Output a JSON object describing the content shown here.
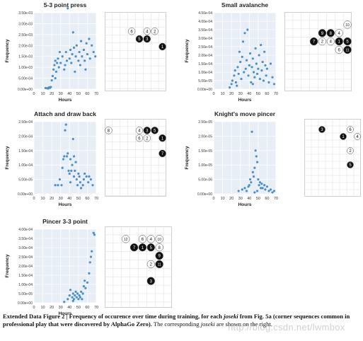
{
  "chart_data": [
    {
      "type": "scatter",
      "title": "5-3 point press",
      "xlabel": "Hours",
      "ylabel": "Frequency",
      "xlim": [
        0,
        70
      ],
      "ylim": [
        0,
        0.0035
      ],
      "xticks": [
        "0",
        "10",
        "20",
        "30",
        "40",
        "50",
        "60",
        "70"
      ],
      "yticks": [
        "0.00e+00",
        "5.00e-04",
        "1.00e-03",
        "1.50e-03",
        "2.00e-03",
        "2.50e-03",
        "3.00e-03",
        "3.50e-03"
      ],
      "color": "#4a90c8",
      "points": [
        [
          13,
          5e-05
        ],
        [
          15,
          4e-05
        ],
        [
          16,
          3e-05
        ],
        [
          17,
          8e-05
        ],
        [
          18,
          6e-05
        ],
        [
          19,
          0.0001
        ],
        [
          20,
          0.0004
        ],
        [
          21,
          0.0006
        ],
        [
          22,
          0.0009
        ],
        [
          23,
          0.0011
        ],
        [
          24,
          0.0013
        ],
        [
          25,
          0.0008
        ],
        [
          26,
          0.0012
        ],
        [
          27,
          0.0014
        ],
        [
          28,
          0.001
        ],
        [
          30,
          0.0012
        ],
        [
          32,
          0.0015
        ],
        [
          34,
          0.0009
        ],
        [
          35,
          0.0011
        ],
        [
          36,
          0.0017
        ],
        [
          37,
          0.0013
        ],
        [
          38,
          0.0037
        ],
        [
          40,
          0.0014
        ],
        [
          41,
          0.0018
        ],
        [
          42,
          0.0012
        ],
        [
          43,
          0.0016
        ],
        [
          45,
          0.0019
        ],
        [
          46,
          0.0008
        ],
        [
          47,
          0.0015
        ],
        [
          48,
          0.002
        ],
        [
          50,
          0.0013
        ],
        [
          51,
          0.0017
        ],
        [
          52,
          0.0011
        ],
        [
          54,
          0.0015
        ],
        [
          56,
          0.0018
        ],
        [
          57,
          0.0013
        ],
        [
          59,
          0.0021
        ],
        [
          60,
          0.0016
        ],
        [
          62,
          0.0023
        ],
        [
          63,
          0.0014
        ],
        [
          65,
          0.002
        ],
        [
          67,
          0.0017
        ],
        [
          69,
          0.0015
        ],
        [
          44,
          0.0026
        ],
        [
          53,
          0.0022
        ],
        [
          58,
          0.0009
        ],
        [
          24,
          0.0005
        ],
        [
          29,
          0.0017
        ]
      ]
    },
    {
      "type": "scatter",
      "title": "Small avalanche",
      "xlabel": "Hours",
      "ylabel": "Frequency",
      "xlim": [
        0,
        70
      ],
      "ylim": [
        0,
        0.00045
      ],
      "xticks": [
        "0",
        "10",
        "20",
        "30",
        "40",
        "50",
        "60",
        "70"
      ],
      "yticks": [
        "0.00e+00",
        "5.00e-05",
        "1.00e-04",
        "1.50e-04",
        "2.00e-04",
        "2.50e-04",
        "3.00e-04",
        "3.50e-04",
        "4.00e-04",
        "4.50e-04"
      ],
      "color": "#4a90c8",
      "points": [
        [
          18,
          1e-05
        ],
        [
          20,
          3e-05
        ],
        [
          21,
          5e-05
        ],
        [
          23,
          8e-05
        ],
        [
          24,
          0.00011
        ],
        [
          25,
          4e-05
        ],
        [
          27,
          0.00013
        ],
        [
          28,
          9e-05
        ],
        [
          29,
          0.00022
        ],
        [
          30,
          0.00016
        ],
        [
          31,
          6e-05
        ],
        [
          32,
          0.00019
        ],
        [
          33,
          0.00028
        ],
        [
          34,
          0.0001
        ],
        [
          35,
          0.00033
        ],
        [
          36,
          0.00012
        ],
        [
          37,
          0.00017
        ],
        [
          38,
          0.00035
        ],
        [
          39,
          8e-05
        ],
        [
          40,
          0.00014
        ],
        [
          41,
          0.00021
        ],
        [
          42,
          4e-05
        ],
        [
          43,
          0.00013
        ],
        [
          44,
          0.00018
        ],
        [
          45,
          0.0001
        ],
        [
          46,
          7e-05
        ],
        [
          47,
          0.00024
        ],
        [
          48,
          0.00015
        ],
        [
          49,
          9e-05
        ],
        [
          50,
          0.00012
        ],
        [
          51,
          0.0002
        ],
        [
          52,
          6e-05
        ],
        [
          53,
          0.00026
        ],
        [
          54,
          0.00011
        ],
        [
          55,
          0.00016
        ],
        [
          56,
          5e-05
        ],
        [
          57,
          0.00022
        ],
        [
          59,
          8e-05
        ],
        [
          60,
          0.00012
        ],
        [
          62,
          4e-05
        ],
        [
          64,
          0.00015
        ],
        [
          66,
          7e-05
        ],
        [
          68,
          3e-05
        ],
        [
          26,
          2e-05
        ],
        [
          44,
          3e-05
        ],
        [
          58,
          0.00014
        ]
      ]
    },
    {
      "type": "scatter",
      "title": "Attach and draw back",
      "xlabel": "Hours",
      "ylabel": "Frequency",
      "xlim": [
        0,
        70
      ],
      "ylim": [
        0,
        0.00025
      ],
      "xticks": [
        "0",
        "10",
        "20",
        "30",
        "40",
        "50",
        "60",
        "70"
      ],
      "yticks": [
        "0.00e+00",
        "5.00e-05",
        "1.00e-04",
        "1.50e-04",
        "2.00e-04",
        "2.50e-04"
      ],
      "color": "#4a90c8",
      "points": [
        [
          24,
          3e-05
        ],
        [
          27,
          3e-05
        ],
        [
          29,
          5e-05
        ],
        [
          31,
          3e-05
        ],
        [
          32,
          9e-05
        ],
        [
          33,
          0.00012
        ],
        [
          34,
          0.00013
        ],
        [
          35,
          0.00022
        ],
        [
          36,
          0.00024
        ],
        [
          37,
          0.00013
        ],
        [
          38,
          0.00014
        ],
        [
          39,
          8e-05
        ],
        [
          40,
          7e-05
        ],
        [
          41,
          4e-05
        ],
        [
          42,
          8e-05
        ],
        [
          43,
          0.0001
        ],
        [
          44,
          0.00019
        ],
        [
          45,
          6e-05
        ],
        [
          46,
          8e-05
        ],
        [
          47,
          0.00011
        ],
        [
          48,
          5e-05
        ],
        [
          49,
          3e-05
        ],
        [
          50,
          7e-05
        ],
        [
          51,
          6e-05
        ],
        [
          52,
          4e-05
        ],
        [
          53,
          2e-05
        ],
        [
          55,
          3e-05
        ],
        [
          56,
          5e-05
        ],
        [
          57,
          7e-05
        ],
        [
          59,
          6e-05
        ],
        [
          61,
          4e-05
        ],
        [
          62,
          6e-05
        ],
        [
          64,
          5e-05
        ],
        [
          66,
          3e-05
        ],
        [
          45,
          0.00013
        ],
        [
          41,
          0.00012
        ]
      ]
    },
    {
      "type": "scatter",
      "title": "Knight's move pincer",
      "xlabel": "Hours",
      "ylabel": "Frequency",
      "xlim": [
        0,
        70
      ],
      "ylim": [
        0,
        2.5e-05
      ],
      "xticks": [
        "0",
        "10",
        "20",
        "30",
        "40",
        "50",
        "60",
        "70"
      ],
      "yticks": [
        "0.00e+00",
        "5.00e-06",
        "1.00e-05",
        "1.50e-05",
        "2.00e-05",
        "2.50e-05"
      ],
      "color": "#4a90c8",
      "points": [
        [
          28,
          1e-06
        ],
        [
          32,
          1.5e-06
        ],
        [
          35,
          2e-06
        ],
        [
          37,
          1e-06
        ],
        [
          39,
          2.5e-06
        ],
        [
          40,
          3e-06
        ],
        [
          41,
          5e-06
        ],
        [
          42,
          4e-06
        ],
        [
          43,
          2.15e-05
        ],
        [
          44,
          7.5e-06
        ],
        [
          45,
          6e-06
        ],
        [
          46,
          9e-06
        ],
        [
          47,
          1.5e-05
        ],
        [
          48,
          1.3e-05
        ],
        [
          49,
          1.1e-05
        ],
        [
          50,
          5e-06
        ],
        [
          51,
          3e-06
        ],
        [
          52,
          4e-06
        ],
        [
          53,
          2e-06
        ],
        [
          54,
          3.5e-06
        ],
        [
          55,
          2e-06
        ],
        [
          57,
          3e-06
        ],
        [
          58,
          1.5e-06
        ],
        [
          60,
          2.5e-06
        ],
        [
          62,
          1e-06
        ],
        [
          64,
          1.5e-06
        ],
        [
          66,
          5e-07
        ],
        [
          68,
          1e-06
        ],
        [
          46,
          5e-07
        ],
        [
          49,
          1e-06
        ]
      ]
    },
    {
      "type": "scatter",
      "title": "Pincer 3-3 point",
      "xlabel": "Hours",
      "ylabel": "Frequency",
      "xlim": [
        0,
        70
      ],
      "ylim": [
        0,
        0.0004
      ],
      "xticks": [
        "0",
        "10",
        "20",
        "30",
        "40",
        "50",
        "60",
        "70"
      ],
      "yticks": [
        "0.00e+00",
        "5.00e-05",
        "1.00e-04",
        "1.50e-04",
        "2.00e-04",
        "2.50e-04",
        "3.00e-04",
        "3.50e-04",
        "4.00e-04"
      ],
      "color": "#4a90c8",
      "points": [
        [
          34,
          5e-06
        ],
        [
          38,
          2e-05
        ],
        [
          40,
          4e-05
        ],
        [
          41,
          7e-05
        ],
        [
          43,
          3e-05
        ],
        [
          44,
          5e-05
        ],
        [
          45,
          2e-05
        ],
        [
          46,
          4e-05
        ],
        [
          47,
          6e-05
        ],
        [
          48,
          3e-05
        ],
        [
          49,
          5e-05
        ],
        [
          50,
          2e-05
        ],
        [
          51,
          4e-05
        ],
        [
          52,
          3e-05
        ],
        [
          53,
          6e-05
        ],
        [
          55,
          5e-05
        ],
        [
          56,
          9e-05
        ],
        [
          57,
          0.00012
        ],
        [
          58,
          8e-05
        ],
        [
          60,
          0.00011
        ],
        [
          62,
          0.00016
        ],
        [
          63,
          0.00022
        ],
        [
          64,
          0.00025
        ],
        [
          65,
          0.00028
        ],
        [
          67,
          0.00038
        ],
        [
          68,
          0.00037
        ],
        [
          44,
          1e-05
        ],
        [
          54,
          2e-05
        ]
      ]
    }
  ],
  "boards": [
    {
      "stones": [
        {
          "col": 3,
          "row": 2,
          "label": "6",
          "color": "white"
        },
        {
          "col": 5,
          "row": 2,
          "label": "4",
          "color": "white"
        },
        {
          "col": 6,
          "row": 2,
          "label": "2",
          "color": "white"
        },
        {
          "col": 4,
          "row": 3,
          "label": "5",
          "color": "black"
        },
        {
          "col": 5,
          "row": 3,
          "label": "3",
          "color": "black"
        },
        {
          "col": 7,
          "row": 4,
          "label": "1",
          "color": "black"
        }
      ]
    },
    {
      "stones": [
        {
          "col": 7,
          "row": 1,
          "label": "10",
          "color": "white"
        },
        {
          "col": 4,
          "row": 2,
          "label": "9",
          "color": "black"
        },
        {
          "col": 5,
          "row": 2,
          "label": "8",
          "color": "black"
        },
        {
          "col": 6,
          "row": 2,
          "label": "4",
          "color": "white"
        },
        {
          "col": 3,
          "row": 3,
          "label": "7",
          "color": "black"
        },
        {
          "col": 4,
          "row": 3,
          "label": "2",
          "color": "white"
        },
        {
          "col": 5,
          "row": 3,
          "label": "4",
          "color": "white"
        },
        {
          "col": 6,
          "row": 3,
          "label": "1",
          "color": "black"
        },
        {
          "col": 7,
          "row": 3,
          "label": "5",
          "color": "black"
        },
        {
          "col": 6,
          "row": 4,
          "label": "6",
          "color": "white"
        },
        {
          "col": 7,
          "row": 4,
          "label": "11",
          "color": "black"
        }
      ]
    },
    {
      "stones": [
        {
          "col": 0,
          "row": 1,
          "label": "8",
          "color": "white"
        },
        {
          "col": 4,
          "row": 1,
          "label": "4",
          "color": "white"
        },
        {
          "col": 5,
          "row": 1,
          "label": "3",
          "color": "black"
        },
        {
          "col": 6,
          "row": 1,
          "label": "5",
          "color": "black"
        },
        {
          "col": 4,
          "row": 2,
          "label": "6",
          "color": "white"
        },
        {
          "col": 5,
          "row": 2,
          "label": "2",
          "color": "white"
        },
        {
          "col": 7,
          "row": 2,
          "label": "1",
          "color": "black"
        },
        {
          "col": 7,
          "row": 4,
          "label": "7",
          "color": "black"
        }
      ]
    },
    {
      "stones": [
        {
          "col": 2,
          "row": 1,
          "label": "3",
          "color": "black"
        },
        {
          "col": 6,
          "row": 1,
          "label": "6",
          "color": "white"
        },
        {
          "col": 5,
          "row": 2,
          "label": "1",
          "color": "black"
        },
        {
          "col": 7,
          "row": 2,
          "label": "4",
          "color": "white"
        },
        {
          "col": 6,
          "row": 4,
          "label": "2",
          "color": "white"
        },
        {
          "col": 6,
          "row": 6,
          "label": "5",
          "color": "black"
        }
      ]
    },
    {
      "stones": [
        {
          "col": 2,
          "row": 1,
          "label": "12",
          "color": "white"
        },
        {
          "col": 4,
          "row": 1,
          "label": "6",
          "color": "white"
        },
        {
          "col": 5,
          "row": 1,
          "label": "4",
          "color": "white"
        },
        {
          "col": 6,
          "row": 1,
          "label": "10",
          "color": "white"
        },
        {
          "col": 3,
          "row": 2,
          "label": "7",
          "color": "black"
        },
        {
          "col": 4,
          "row": 2,
          "label": "1",
          "color": "black"
        },
        {
          "col": 5,
          "row": 2,
          "label": "5",
          "color": "black"
        },
        {
          "col": 6,
          "row": 2,
          "label": "8",
          "color": "white"
        },
        {
          "col": 6,
          "row": 3,
          "label": "9",
          "color": "black"
        },
        {
          "col": 5,
          "row": 4,
          "label": "2",
          "color": "white"
        },
        {
          "col": 6,
          "row": 4,
          "label": "11",
          "color": "black"
        },
        {
          "col": 5,
          "row": 6,
          "label": "3",
          "color": "black"
        }
      ]
    }
  ],
  "caption": {
    "prefix": "Extended Data Figure 2 | Frequency of occurence over time during training, for each ",
    "italic1": "joseki",
    "middle": " from Fig. 5a (corner sequences common in professional play that were discovered by AlphaGo Zero).",
    "suffix1": " The corresponding ",
    "italic2": "joseki",
    "suffix2": " are shown on the right."
  },
  "watermark": "http://blog.csdn.net/lwmbox"
}
